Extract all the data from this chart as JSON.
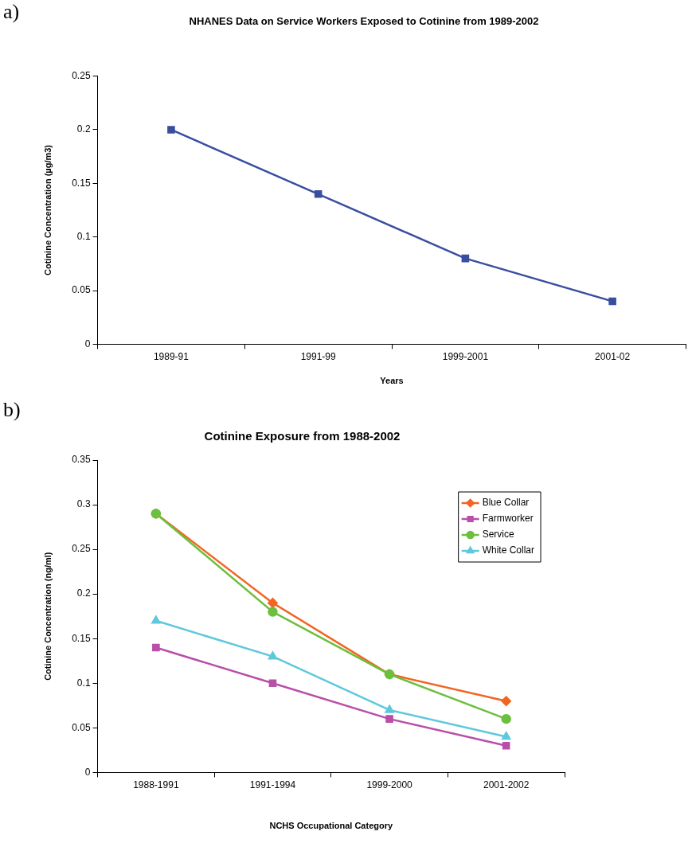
{
  "chart_data": [
    {
      "type": "line",
      "title": "NHANES Data on Service Workers Exposed to Cotinine from 1989-2002",
      "xlabel": "Years",
      "ylabel": "Cotinine Concentration (µg/m3)",
      "annotations": [
        "a)"
      ],
      "categories": [
        "1989-91",
        "1991-99",
        "1999-2001",
        "2001-02"
      ],
      "series": [
        {
          "color": "#3a4ea0",
          "values": [
            0.2,
            0.14,
            0.08,
            0.04
          ]
        }
      ],
      "marker": "square",
      "ylim": [
        0,
        0.25
      ],
      "yticks": [
        0,
        0.05,
        0.1,
        0.15,
        0.2,
        0.25
      ],
      "legend": false
    },
    {
      "type": "line",
      "title": "Cotinine Exposure from 1988-2002",
      "xlabel": "NCHS Occupational Category",
      "ylabel": "Cotinine Concentration (ng/ml)",
      "annotations": [
        "b)"
      ],
      "categories": [
        "1988-1991",
        "1991-1994",
        "1999-2000",
        "2001-2002"
      ],
      "series": [
        {
          "name": "Blue Collar",
          "color": "#f26522",
          "marker": "diamond",
          "values": [
            0.29,
            0.19,
            0.11,
            0.08
          ]
        },
        {
          "name": "Farmworker",
          "color": "#b84fa8",
          "marker": "square",
          "values": [
            0.14,
            0.1,
            0.06,
            0.03
          ]
        },
        {
          "name": "Service",
          "color": "#6cbf3f",
          "marker": "circle",
          "values": [
            0.29,
            0.18,
            0.11,
            0.06
          ]
        },
        {
          "name": "White Collar",
          "color": "#5ec8dc",
          "marker": "triangle",
          "values": [
            0.17,
            0.13,
            0.07,
            0.04
          ]
        }
      ],
      "ylim": [
        0,
        0.35
      ],
      "yticks": [
        0,
        0.05,
        0.1,
        0.15,
        0.2,
        0.25,
        0.3,
        0.35
      ],
      "legend": "top right"
    }
  ]
}
